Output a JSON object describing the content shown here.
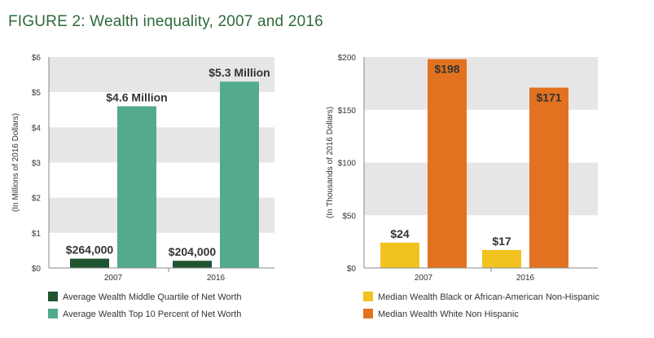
{
  "figure_title": "FIGURE 2: Wealth inequality, 2007 and 2016",
  "chart_data": [
    {
      "type": "bar",
      "ylabel": "(In Millions of 2016 Dollars)",
      "ylim": [
        0,
        6
      ],
      "yticks": [
        0,
        1,
        2,
        3,
        4,
        5,
        6
      ],
      "ytick_labels": [
        "$0",
        "$1",
        "$2",
        "$3",
        "$4",
        "$5",
        "$6"
      ],
      "categories": [
        "2007",
        "2016"
      ],
      "series": [
        {
          "name": "Average Wealth Middle Quartile of Net Worth",
          "color": "#1f5430",
          "values": [
            0.264,
            0.204
          ],
          "labels": [
            "$264,000",
            "$204,000"
          ]
        },
        {
          "name": "Average Wealth Top 10 Percent  of Net Worth",
          "color": "#53ab8b",
          "values": [
            4.6,
            5.3
          ],
          "labels": [
            "$4.6 Million",
            "$5.3 Million"
          ]
        }
      ],
      "grid_bands": true,
      "legend": "bottom"
    },
    {
      "type": "bar",
      "ylabel": "(In Thousands of 2016 Dollars)",
      "ylim": [
        0,
        200
      ],
      "yticks": [
        0,
        50,
        100,
        150,
        200
      ],
      "ytick_labels": [
        "$0",
        "$50",
        "$100",
        "$150",
        "$200"
      ],
      "categories": [
        "2007",
        "2016"
      ],
      "series": [
        {
          "name": "Median Wealth Black or African-American Non-Hispanic",
          "color": "#f2c31f",
          "values": [
            24,
            17
          ],
          "labels": [
            "$24",
            "$17"
          ]
        },
        {
          "name": "Median Wealth White Non Hispanic",
          "color": "#e2721f",
          "values": [
            198,
            171
          ],
          "labels": [
            "$198",
            "$171"
          ]
        }
      ],
      "grid_bands": true,
      "legend": "bottom"
    }
  ]
}
